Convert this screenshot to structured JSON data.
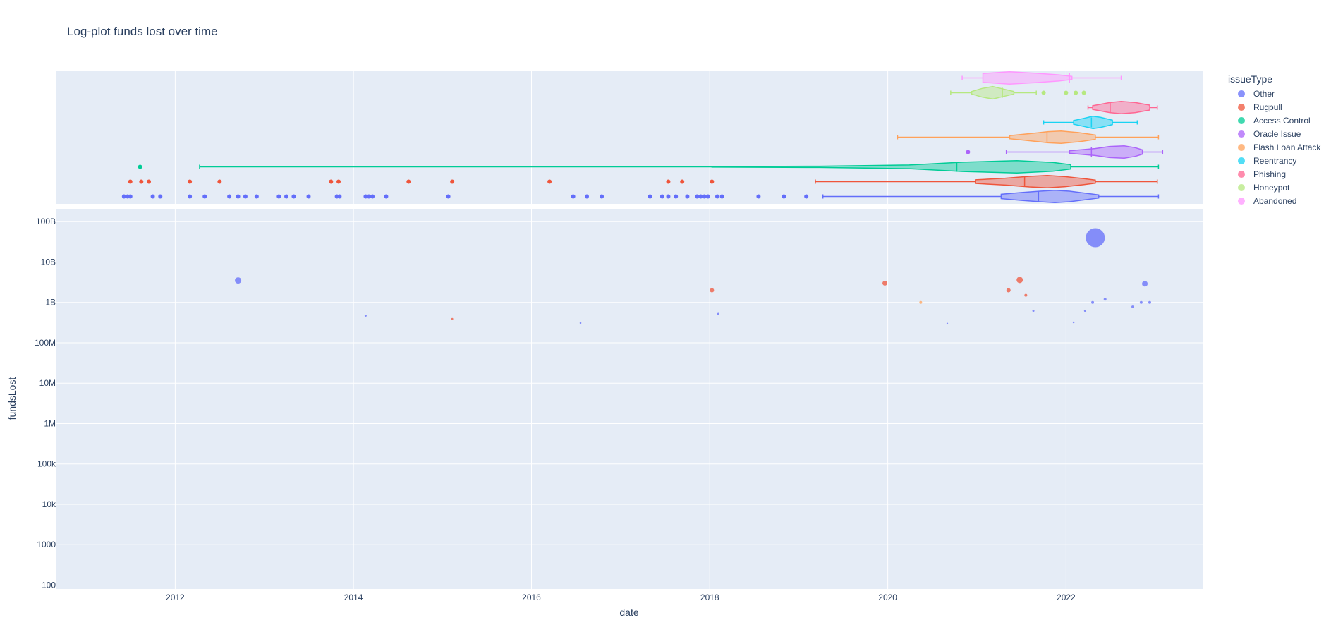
{
  "chart_data": {
    "type": "scatter",
    "title": "Log-plot funds lost over time",
    "xlabel": "date",
    "ylabel": "fundsLost",
    "y_scale": "log",
    "grid": true,
    "legend_placement": "top-right",
    "xlim": [
      "2010-09-01",
      "2023-07-15"
    ],
    "x_ticks": [
      "2012",
      "2014",
      "2016",
      "2018",
      "2020",
      "2022"
    ],
    "ylim": [
      80,
      200000000000
    ],
    "y_ticks": [
      {
        "label": "100B",
        "value": 100000000000
      },
      {
        "label": "10B",
        "value": 10000000000
      },
      {
        "label": "1B",
        "value": 1000000000
      },
      {
        "label": "100M",
        "value": 100000000
      },
      {
        "label": "10M",
        "value": 10000000
      },
      {
        "label": "1M",
        "value": 1000000
      },
      {
        "label": "100k",
        "value": 100000
      },
      {
        "label": "10k",
        "value": 10000
      },
      {
        "label": "1000",
        "value": 1000
      },
      {
        "label": "100",
        "value": 100
      }
    ],
    "legend_title": "issueType",
    "series": [
      {
        "name": "Other",
        "color": "#636efa"
      },
      {
        "name": "Rugpull",
        "color": "#EF553B"
      },
      {
        "name": "Access Control",
        "color": "#00cc96"
      },
      {
        "name": "Oracle Issue",
        "color": "#ab63fa"
      },
      {
        "name": "Flash Loan Attack",
        "color": "#FFA15A"
      },
      {
        "name": "Reentrancy",
        "color": "#19d3f3"
      },
      {
        "name": "Phishing",
        "color": "#FF6692"
      },
      {
        "name": "Honeypot",
        "color": "#B6E880"
      },
      {
        "name": "Abandoned",
        "color": "#FF97FF"
      }
    ],
    "points": [
      {
        "series": 0,
        "date": "2012-09-15",
        "y": 3500000000,
        "size": 8
      },
      {
        "series": 0,
        "date": "2014-02-20",
        "y": 470000000,
        "size": 2
      },
      {
        "series": 1,
        "date": "2015-02-10",
        "y": 390000000,
        "size": 1.8
      },
      {
        "series": 0,
        "date": "2016-07-20",
        "y": 310000000,
        "size": 1.5
      },
      {
        "series": 1,
        "date": "2018-01-10",
        "y": 2000000000,
        "size": 5
      },
      {
        "series": 0,
        "date": "2018-02-05",
        "y": 520000000,
        "size": 2
      },
      {
        "series": 1,
        "date": "2019-12-20",
        "y": 3000000000,
        "size": 6
      },
      {
        "series": 4,
        "date": "2020-05-15",
        "y": 1000000000,
        "size": 3
      },
      {
        "series": 0,
        "date": "2020-09-01",
        "y": 300000000,
        "size": 1.2
      },
      {
        "series": 1,
        "date": "2021-05-10",
        "y": 2000000000,
        "size": 5
      },
      {
        "series": 1,
        "date": "2021-06-25",
        "y": 3600000000,
        "size": 8
      },
      {
        "series": 1,
        "date": "2021-07-20",
        "y": 1500000000,
        "size": 3
      },
      {
        "series": 0,
        "date": "2021-08-20",
        "y": 620000000,
        "size": 2
      },
      {
        "series": 0,
        "date": "2022-02-01",
        "y": 320000000,
        "size": 1.5
      },
      {
        "series": 0,
        "date": "2022-03-20",
        "y": 620000000,
        "size": 2
      },
      {
        "series": 0,
        "date": "2022-04-20",
        "y": 1000000000,
        "size": 3
      },
      {
        "series": 0,
        "date": "2022-05-01",
        "y": 40000000000,
        "size": 26
      },
      {
        "series": 0,
        "date": "2022-06-10",
        "y": 1200000000,
        "size": 3
      },
      {
        "series": 0,
        "date": "2022-10-01",
        "y": 780000000,
        "size": 2.5
      },
      {
        "series": 0,
        "date": "2022-11-05",
        "y": 1000000000,
        "size": 3
      },
      {
        "series": 0,
        "date": "2022-11-20",
        "y": 2900000000,
        "size": 7
      },
      {
        "series": 0,
        "date": "2022-12-10",
        "y": 1000000000,
        "size": 3
      }
    ],
    "marginal_rugs": [
      {
        "series": 0,
        "dates": [
          "2011-06-05",
          "2011-06-20",
          "2011-07-01",
          "2011-10-01",
          "2011-11-01",
          "2012-03-01",
          "2012-05-01",
          "2012-08-10",
          "2012-09-15",
          "2012-10-15",
          "2012-11-30",
          "2013-03-01",
          "2013-04-01",
          "2013-05-01",
          "2013-07-01",
          "2013-10-25",
          "2013-11-05",
          "2014-02-20",
          "2014-03-05",
          "2014-03-20",
          "2014-05-15",
          "2015-01-25",
          "2016-06-20",
          "2016-08-15",
          "2016-10-15",
          "2017-05-01",
          "2017-06-20",
          "2017-07-15",
          "2017-08-15",
          "2017-10-01",
          "2017-11-10",
          "2017-11-25",
          "2017-12-10",
          "2017-12-25",
          "2018-02-01",
          "2018-02-20",
          "2018-07-20",
          "2018-11-01",
          "2019-02-01"
        ]
      },
      {
        "series": 1,
        "dates": [
          "2011-07-01",
          "2011-08-15",
          "2011-09-15",
          "2012-03-01",
          "2012-07-01",
          "2013-10-01",
          "2013-11-01",
          "2014-08-15",
          "2015-02-10",
          "2016-03-15",
          "2017-07-15",
          "2017-09-10",
          "2018-01-10"
        ]
      },
      {
        "series": 2,
        "dates": [
          "2011-08-10"
        ]
      },
      {
        "series": 3,
        "dates": [
          "2020-11-25"
        ]
      },
      {
        "series": 7,
        "dates": [
          "2021-10-01",
          "2022-01-01",
          "2022-02-10",
          "2022-03-15"
        ]
      }
    ],
    "marginal_violins": [
      {
        "series": 0,
        "min": "2019-04-10",
        "q1": "2021-04-10",
        "median": "2021-09-10",
        "q3": "2022-05-15",
        "max": "2023-01-15",
        "shape": [
          [
            0,
            0.35
          ],
          [
            0.2,
            0.62
          ],
          [
            0.4,
            0.85
          ],
          [
            0.55,
            1
          ],
          [
            0.7,
            0.85
          ],
          [
            0.85,
            0.55
          ],
          [
            1,
            0.25
          ]
        ]
      },
      {
        "series": 1,
        "min": "2019-03-10",
        "q1": "2020-12-25",
        "median": "2021-07-15",
        "q3": "2022-05-01",
        "max": "2023-01-10",
        "shape": [
          [
            0,
            0.3
          ],
          [
            0.25,
            0.55
          ],
          [
            0.45,
            0.85
          ],
          [
            0.6,
            1
          ],
          [
            0.75,
            0.8
          ],
          [
            0.9,
            0.5
          ],
          [
            1,
            0.25
          ]
        ]
      },
      {
        "series": 2,
        "min": "2012-04-10",
        "q1": "2018-01-10",
        "median": "2020-10-10",
        "q3": "2022-01-20",
        "max": "2023-01-15",
        "shape": [
          [
            0,
            0.05
          ],
          [
            0.3,
            0.1
          ],
          [
            0.55,
            0.3
          ],
          [
            0.7,
            0.75
          ],
          [
            0.85,
            1
          ],
          [
            0.95,
            0.7
          ],
          [
            1,
            0.35
          ]
        ]
      },
      {
        "series": 3,
        "min": "2021-05-01",
        "q1": "2022-01-15",
        "median": "2022-04-15",
        "q3": "2022-11-10",
        "max": "2023-02-01",
        "shape": [
          [
            0,
            0.2
          ],
          [
            0.35,
            0.55
          ],
          [
            0.55,
            0.9
          ],
          [
            0.75,
            1
          ],
          [
            0.9,
            0.7
          ],
          [
            1,
            0.35
          ]
        ]
      },
      {
        "series": 4,
        "min": "2020-02-10",
        "q1": "2021-05-15",
        "median": "2021-10-15",
        "q3": "2022-05-01",
        "max": "2023-01-15",
        "shape": [
          [
            0,
            0.25
          ],
          [
            0.25,
            0.6
          ],
          [
            0.45,
            0.9
          ],
          [
            0.6,
            1
          ],
          [
            0.8,
            0.75
          ],
          [
            1,
            0.35
          ]
        ]
      },
      {
        "series": 5,
        "min": "2021-10-01",
        "q1": "2022-02-01",
        "median": "2022-04-15",
        "q3": "2022-07-10",
        "max": "2022-10-20",
        "shape": [
          [
            0,
            0.3
          ],
          [
            0.3,
            0.7
          ],
          [
            0.5,
            1
          ],
          [
            0.7,
            0.8
          ],
          [
            1,
            0.35
          ]
        ]
      },
      {
        "series": 6,
        "min": "2022-04-01",
        "q1": "2022-04-20",
        "median": "2022-07-01",
        "q3": "2022-12-10",
        "max": "2023-01-10",
        "shape": [
          [
            0,
            0.3
          ],
          [
            0.3,
            0.8
          ],
          [
            0.5,
            1
          ],
          [
            0.75,
            0.8
          ],
          [
            1,
            0.4
          ]
        ]
      },
      {
        "series": 7,
        "min": "2020-09-15",
        "q1": "2020-12-10",
        "median": "2021-04-15",
        "q3": "2021-06-01",
        "max": "2021-09-01",
        "shape": [
          [
            0,
            0.2
          ],
          [
            0.25,
            0.7
          ],
          [
            0.5,
            1
          ],
          [
            0.75,
            0.6
          ],
          [
            1,
            0.2
          ]
        ]
      },
      {
        "series": 8,
        "min": "2020-11-01",
        "q1": "2021-01-25",
        "median": "2022-01-15",
        "q3": "2022-01-25",
        "max": "2022-08-15",
        "shape": [
          [
            0,
            0.7
          ],
          [
            0.3,
            1
          ],
          [
            0.6,
            0.75
          ],
          [
            0.85,
            0.5
          ],
          [
            1,
            0.25
          ]
        ]
      }
    ]
  }
}
